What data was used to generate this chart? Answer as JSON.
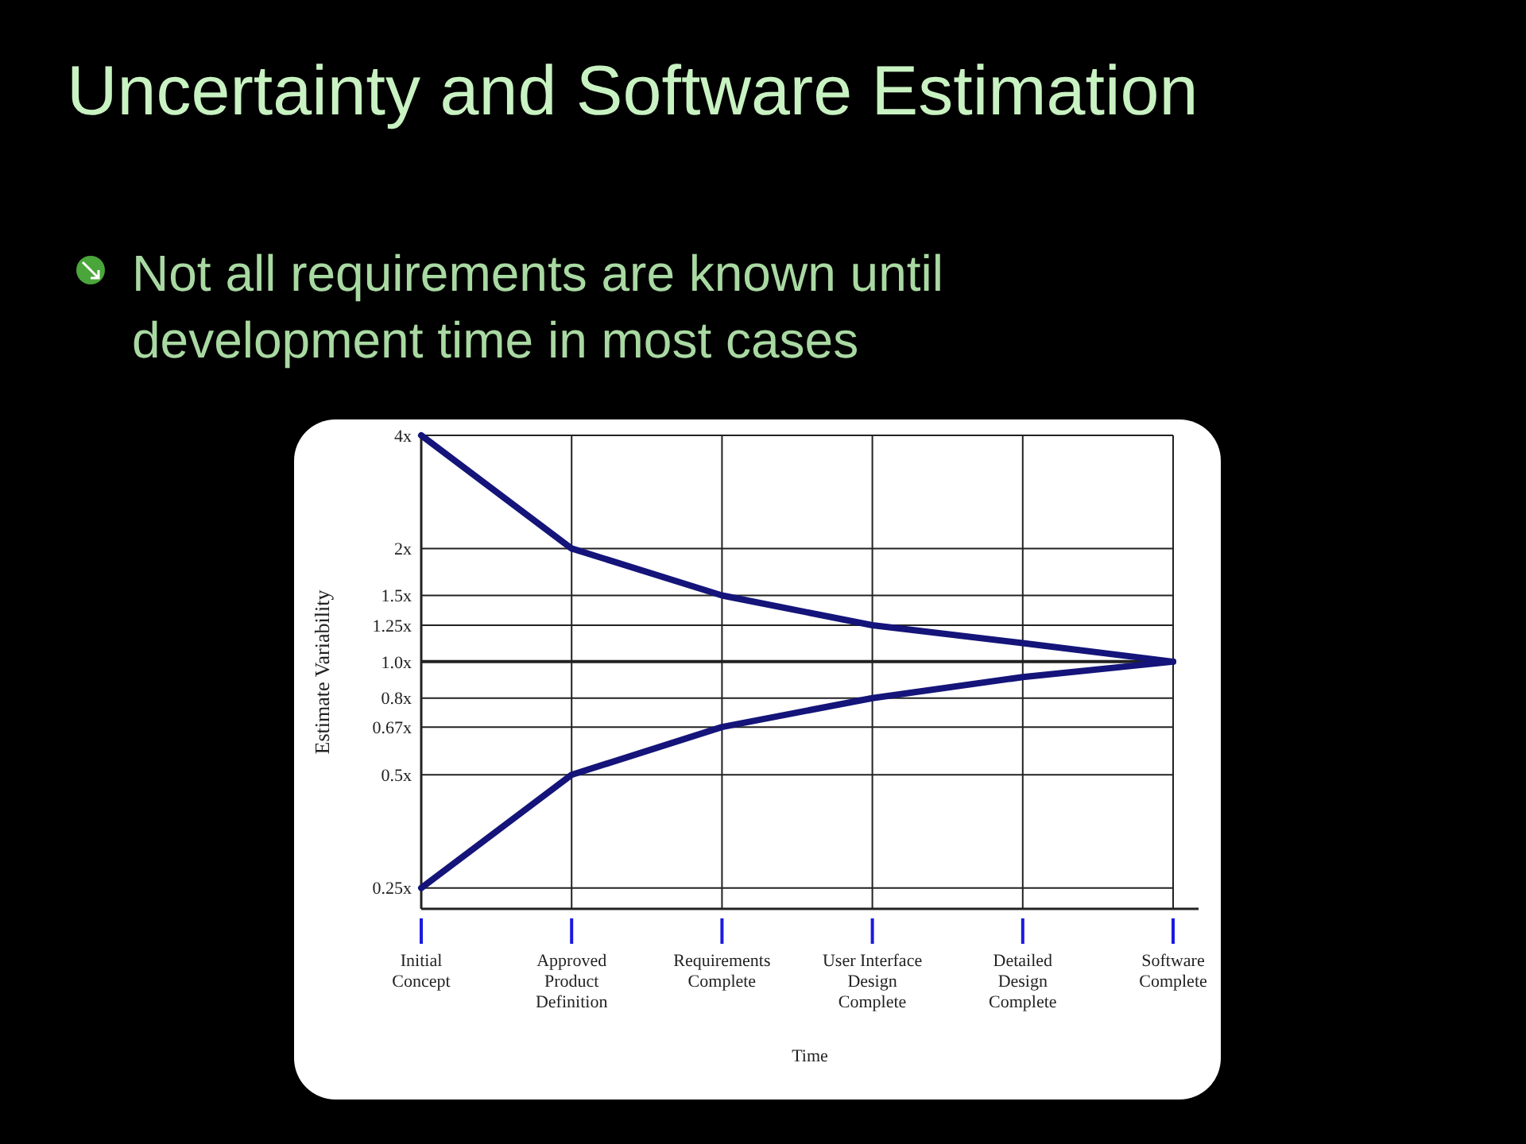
{
  "chart_data": {
    "type": "line",
    "title": "Uncertainty and Software Estimation",
    "subtitle": "Not all requirements are known until development time in most cases",
    "xlabel": "Time",
    "ylabel": "Estimate Variability",
    "categories": [
      "Initial Concept",
      "Approved Product Definition",
      "Requirements Complete",
      "User Interface Design Complete",
      "Detailed Design Complete",
      "Software Complete"
    ],
    "log": "y",
    "ylim": [
      0.22,
      4
    ],
    "yticks": [
      {
        "value": 0.25,
        "label": "0.25x"
      },
      {
        "value": 0.5,
        "label": "0.5x"
      },
      {
        "value": 0.67,
        "label": "0.67x"
      },
      {
        "value": 0.8,
        "label": "0.8x"
      },
      {
        "value": 1,
        "label": "1.0x"
      },
      {
        "value": 1.25,
        "label": "1.25x"
      },
      {
        "value": 1.5,
        "label": "1.5x"
      },
      {
        "value": 2,
        "label": "2x"
      },
      {
        "value": 4,
        "label": "4x"
      }
    ],
    "grid": true,
    "marker": "none",
    "line_style": "solid",
    "ref_lines": [
      {
        "axis": "y",
        "value": 1,
        "color": "#222222"
      }
    ],
    "series": [
      {
        "color": "#14147a",
        "values": [
          4,
          2,
          1.5,
          1.25,
          1.12,
          1
        ]
      },
      {
        "color": "#14147a",
        "values": [
          0.25,
          0.5,
          0.67,
          0.8,
          0.91,
          1
        ]
      }
    ]
  }
}
